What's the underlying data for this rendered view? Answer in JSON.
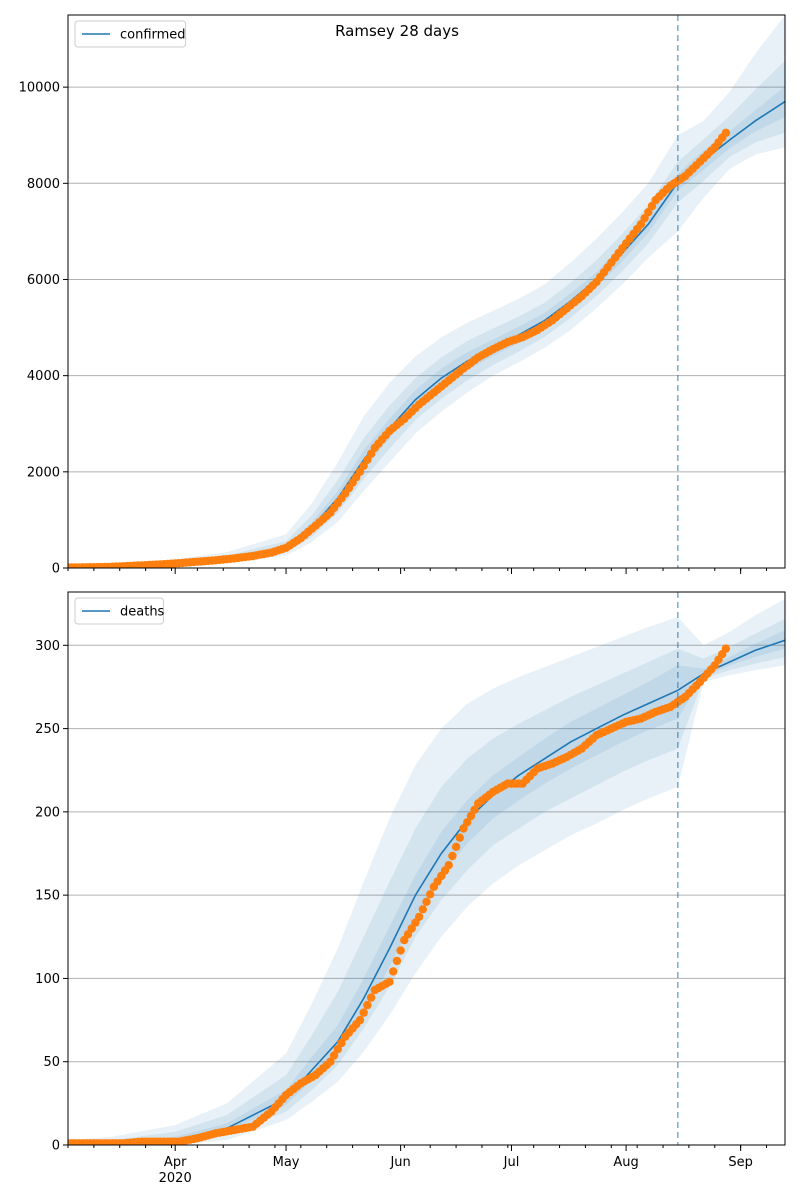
{
  "figure": {
    "title": "Ramsey 28 days"
  },
  "colors": {
    "fit": "#1f77b4",
    "observed": "#ff7f0e",
    "band": "#1f77b4",
    "vline": "#1f77b4",
    "grid": "#b0b0b0"
  },
  "chart_data": [
    {
      "type": "line",
      "legend": {
        "label": "confirmed",
        "position": "top-left"
      },
      "x_axis": {
        "range": [
          "2020-03-03",
          "2020-09-13"
        ],
        "tick_labels": [
          "Apr",
          "May",
          "Jun",
          "Jul",
          "Aug",
          "Sep"
        ],
        "tick_dates": [
          "2020-04-01",
          "2020-05-01",
          "2020-06-01",
          "2020-07-01",
          "2020-08-01",
          "2020-09-01"
        ],
        "year_label": "2020"
      },
      "y_axis": {
        "range": [
          0,
          11500
        ],
        "ticks": [
          0,
          2000,
          4000,
          6000,
          8000,
          10000
        ]
      },
      "grid": "y-only",
      "forecast_start": "2020-08-15",
      "fit": {
        "dates": [
          "2020-03-03",
          "2020-03-15",
          "2020-04-01",
          "2020-04-15",
          "2020-05-01",
          "2020-05-08",
          "2020-05-15",
          "2020-05-22",
          "2020-05-29",
          "2020-06-05",
          "2020-06-12",
          "2020-06-19",
          "2020-06-26",
          "2020-07-03",
          "2020-07-10",
          "2020-07-17",
          "2020-07-24",
          "2020-07-31",
          "2020-08-07",
          "2020-08-15",
          "2020-08-22",
          "2020-08-29",
          "2020-09-05",
          "2020-09-13"
        ],
        "values": [
          10,
          30,
          90,
          180,
          420,
          850,
          1450,
          2250,
          2900,
          3500,
          3950,
          4300,
          4580,
          4850,
          5150,
          5550,
          6000,
          6550,
          7150,
          8020,
          8480,
          8900,
          9300,
          9700
        ]
      },
      "bands": [
        {
          "lower": [
            0,
            0,
            40,
            100,
            260,
            540,
            960,
            1600,
            2200,
            2800,
            3250,
            3650,
            4000,
            4280,
            4580,
            4950,
            5400,
            5900,
            6450,
            7000,
            7700,
            8300,
            8600,
            8750
          ],
          "upper": [
            40,
            80,
            180,
            330,
            700,
            1350,
            2200,
            3150,
            3850,
            4400,
            4800,
            5100,
            5350,
            5600,
            5900,
            6350,
            6850,
            7400,
            8000,
            9000,
            9300,
            9900,
            10700,
            11500
          ]
        },
        {
          "lower": [
            0,
            5,
            60,
            130,
            320,
            650,
            1150,
            1850,
            2480,
            3080,
            3520,
            3900,
            4220,
            4500,
            4810,
            5200,
            5660,
            6170,
            6750,
            7600,
            8050,
            8550,
            8850,
            9050
          ],
          "upper": [
            25,
            55,
            135,
            260,
            560,
            1100,
            1830,
            2700,
            3380,
            3950,
            4380,
            4720,
            4980,
            5230,
            5520,
            5930,
            6400,
            6950,
            7550,
            8450,
            8920,
            9400,
            9950,
            10550
          ]
        },
        {
          "lower": [
            5,
            15,
            75,
            155,
            370,
            750,
            1300,
            2050,
            2700,
            3300,
            3750,
            4110,
            4410,
            4680,
            4990,
            5390,
            5850,
            6380,
            6970,
            7850,
            8280,
            8730,
            9080,
            9380
          ],
          "upper": [
            15,
            45,
            105,
            210,
            470,
            950,
            1600,
            2450,
            3100,
            3700,
            4150,
            4490,
            4750,
            5020,
            5310,
            5710,
            6150,
            6720,
            7330,
            8200,
            8680,
            9080,
            9520,
            10020
          ]
        }
      ],
      "observed": {
        "dates": [
          "2020-03-03",
          "2020-03-08",
          "2020-03-13",
          "2020-03-18",
          "2020-03-23",
          "2020-03-28",
          "2020-04-02",
          "2020-04-07",
          "2020-04-12",
          "2020-04-17",
          "2020-04-22",
          "2020-04-27",
          "2020-05-01",
          "2020-05-05",
          "2020-05-09",
          "2020-05-13",
          "2020-05-17",
          "2020-05-21",
          "2020-05-25",
          "2020-05-29",
          "2020-06-02",
          "2020-06-06",
          "2020-06-10",
          "2020-06-14",
          "2020-06-18",
          "2020-06-22",
          "2020-06-26",
          "2020-06-30",
          "2020-07-04",
          "2020-07-08",
          "2020-07-12",
          "2020-07-16",
          "2020-07-20",
          "2020-07-24",
          "2020-07-28",
          "2020-08-01",
          "2020-08-05",
          "2020-08-09",
          "2020-08-13",
          "2020-08-17",
          "2020-08-21",
          "2020-08-25",
          "2020-08-28"
        ],
        "values": [
          10,
          15,
          20,
          35,
          55,
          75,
          100,
          130,
          160,
          200,
          250,
          320,
          420,
          620,
          880,
          1150,
          1550,
          2000,
          2500,
          2850,
          3100,
          3400,
          3650,
          3900,
          4150,
          4380,
          4550,
          4700,
          4800,
          4950,
          5150,
          5400,
          5650,
          5950,
          6350,
          6750,
          7150,
          7650,
          7950,
          8150,
          8450,
          8750,
          9050
        ]
      }
    },
    {
      "type": "line",
      "legend": {
        "label": "deaths",
        "position": "top-left"
      },
      "x_axis": {
        "range": [
          "2020-03-03",
          "2020-09-13"
        ],
        "tick_labels": [
          "Apr",
          "May",
          "Jun",
          "Jul",
          "Aug",
          "Sep"
        ],
        "tick_dates": [
          "2020-04-01",
          "2020-05-01",
          "2020-06-01",
          "2020-07-01",
          "2020-08-01",
          "2020-09-01"
        ],
        "year_label": "2020"
      },
      "y_axis": {
        "range": [
          0,
          332
        ],
        "ticks": [
          0,
          50,
          100,
          150,
          200,
          250,
          300
        ]
      },
      "grid": "y-only",
      "forecast_start": "2020-08-15",
      "fit": {
        "dates": [
          "2020-03-03",
          "2020-03-15",
          "2020-04-01",
          "2020-04-15",
          "2020-05-01",
          "2020-05-08",
          "2020-05-15",
          "2020-05-22",
          "2020-05-29",
          "2020-06-05",
          "2020-06-12",
          "2020-06-19",
          "2020-06-26",
          "2020-07-03",
          "2020-07-10",
          "2020-07-17",
          "2020-07-24",
          "2020-07-31",
          "2020-08-07",
          "2020-08-15",
          "2020-08-22",
          "2020-08-29",
          "2020-09-05",
          "2020-09-13"
        ],
        "values": [
          0,
          1,
          3,
          10,
          28,
          45,
          62,
          88,
          118,
          150,
          175,
          195,
          210,
          222,
          232,
          242,
          250,
          258,
          265,
          273,
          283,
          290,
          297,
          303
        ]
      },
      "bands": [
        {
          "lower": [
            0,
            0,
            0,
            3,
            15,
            26,
            38,
            56,
            78,
            103,
            125,
            143,
            157,
            168,
            177,
            186,
            193,
            201,
            208,
            215,
            278,
            282,
            285,
            288
          ],
          "upper": [
            3,
            5,
            12,
            25,
            55,
            85,
            118,
            158,
            196,
            228,
            250,
            265,
            274,
            281,
            287,
            293,
            299,
            305,
            311,
            317,
            300,
            308,
            318,
            328
          ]
        },
        {
          "lower": [
            0,
            0,
            1,
            6,
            20,
            33,
            48,
            70,
            95,
            125,
            147,
            165,
            180,
            190,
            200,
            208,
            216,
            224,
            231,
            238,
            280,
            285,
            289,
            293
          ],
          "upper": [
            1,
            3,
            8,
            18,
            42,
            66,
            92,
            125,
            158,
            190,
            215,
            232,
            244,
            253,
            261,
            269,
            276,
            283,
            290,
            298,
            292,
            299,
            307,
            316
          ]
        },
        {
          "lower": [
            0,
            1,
            2,
            8,
            24,
            39,
            56,
            79,
            107,
            138,
            162,
            181,
            196,
            207,
            217,
            226,
            234,
            242,
            249,
            256,
            281,
            288,
            293,
            298
          ],
          "upper": [
            1,
            2,
            5,
            13,
            33,
            53,
            72,
            100,
            131,
            162,
            188,
            207,
            222,
            233,
            244,
            254,
            262,
            270,
            278,
            288,
            286,
            293,
            301,
            309
          ]
        }
      ],
      "observed": {
        "dates": [
          "2020-03-03",
          "2020-03-08",
          "2020-03-13",
          "2020-03-18",
          "2020-03-23",
          "2020-03-28",
          "2020-04-02",
          "2020-04-07",
          "2020-04-12",
          "2020-04-17",
          "2020-04-22",
          "2020-04-27",
          "2020-05-01",
          "2020-05-05",
          "2020-05-09",
          "2020-05-13",
          "2020-05-17",
          "2020-05-21",
          "2020-05-25",
          "2020-05-29",
          "2020-06-02",
          "2020-06-06",
          "2020-06-10",
          "2020-06-14",
          "2020-06-18",
          "2020-06-22",
          "2020-06-26",
          "2020-06-30",
          "2020-07-04",
          "2020-07-08",
          "2020-07-12",
          "2020-07-16",
          "2020-07-20",
          "2020-07-24",
          "2020-07-28",
          "2020-08-01",
          "2020-08-05",
          "2020-08-09",
          "2020-08-13",
          "2020-08-17",
          "2020-08-21",
          "2020-08-25",
          "2020-08-28"
        ],
        "values": [
          1,
          1,
          1,
          1,
          2,
          2,
          2,
          4,
          7,
          9,
          11,
          20,
          30,
          37,
          42,
          50,
          65,
          75,
          93,
          98,
          123,
          137,
          155,
          168,
          190,
          205,
          212,
          217,
          217,
          226,
          229,
          233,
          238,
          246,
          250,
          254,
          256,
          260,
          263,
          269,
          278,
          288,
          298
        ]
      }
    }
  ]
}
